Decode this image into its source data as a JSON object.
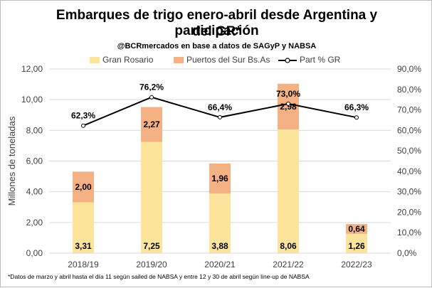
{
  "chart_data": {
    "type": "bar",
    "title": "Embarques de trigo enero-abril desde Argentina y participación del GR*",
    "subtitle": "@BCRmercados en base a datos de SAGyP y NABSA",
    "categories": [
      "2018/19",
      "2019/20",
      "2020/21",
      "2021/22",
      "2022/23"
    ],
    "series": [
      {
        "name": "Gran Rosario",
        "type": "stacked-bar",
        "axis": "left",
        "color": "#FCE49C",
        "values": [
          3.31,
          7.25,
          3.88,
          8.06,
          1.26
        ],
        "labels": [
          "3,31",
          "7,25",
          "3,88",
          "8,06",
          "1,26"
        ]
      },
      {
        "name": "Puertos del Sur Bs.As",
        "type": "stacked-bar",
        "axis": "left",
        "color": "#F4B183",
        "values": [
          2.0,
          2.27,
          1.96,
          2.98,
          0.64
        ],
        "labels": [
          "2,00",
          "2,27",
          "1,96",
          "2,98",
          "0,64"
        ]
      },
      {
        "name": "Part % GR",
        "type": "line",
        "axis": "right",
        "color": "#000000",
        "values": [
          62.3,
          76.2,
          66.4,
          73.0,
          66.3
        ],
        "labels": [
          "62,3%",
          "76,2%",
          "66,4%",
          "73,0%",
          "66,3%"
        ]
      }
    ],
    "ylabel": "Millones de toneladas",
    "ylim": [
      0,
      12
    ],
    "yticks": [
      "0,00",
      "2,00",
      "4,00",
      "6,00",
      "8,00",
      "10,00",
      "12,00"
    ],
    "y2lim": [
      0,
      90
    ],
    "y2ticks": [
      "0,0%",
      "10,0%",
      "20,0%",
      "30,0%",
      "40,0%",
      "50,0%",
      "60,0%",
      "70,0%",
      "80,0%",
      "90,0%"
    ],
    "grid": true,
    "legend": "top",
    "footnote": "*Datos de marzo y abril hasta el día 11 según sailed de NABSA y entre 12 y 30 de abril según line-up de NABSA"
  }
}
